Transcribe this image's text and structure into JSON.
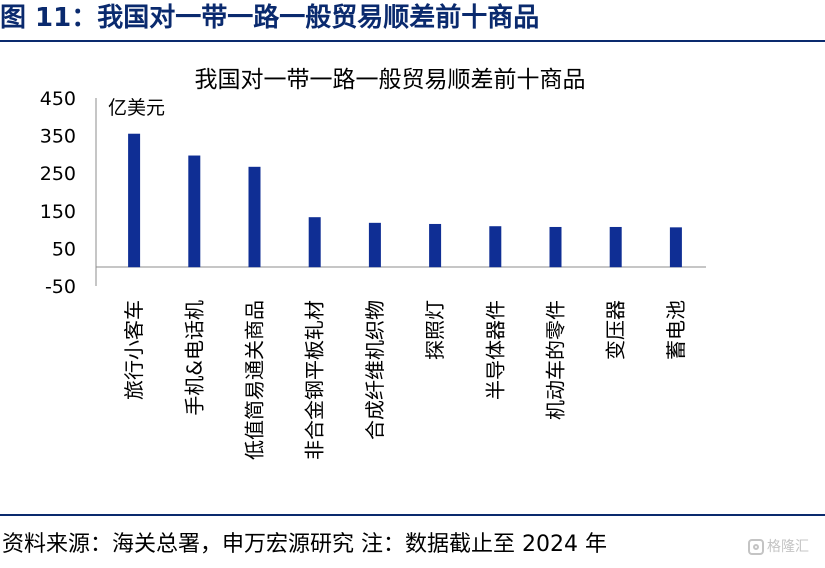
{
  "figure_title": "图 11：我国对一带一路一般贸易顺差前十商品",
  "footer_text": "资料来源：海关总署，申万宏源研究 注：数据截止至 2024 年",
  "watermark": "格隆汇",
  "colors": {
    "bar": "#0f2e94",
    "frame": "#0a2a6e",
    "axis": "#8c8c8c"
  },
  "chart_data": {
    "type": "bar",
    "title": "我国对一带一路一般贸易顺差前十商品",
    "ylabel": "亿美元",
    "xlabel": "",
    "ylim": [
      -50,
      450
    ],
    "yticks": [
      450,
      350,
      250,
      150,
      50,
      -50
    ],
    "grid": false,
    "categories": [
      "旅行小客车",
      "手机&电话机",
      "低值简易通关商品",
      "非合金钢平板轧材",
      "合成纤维机织物",
      "探照灯",
      "半导体器件",
      "机动车的零件",
      "变压器",
      "蓄电池"
    ],
    "values": [
      355,
      297,
      267,
      133,
      118,
      115,
      109,
      107,
      107,
      106
    ]
  }
}
